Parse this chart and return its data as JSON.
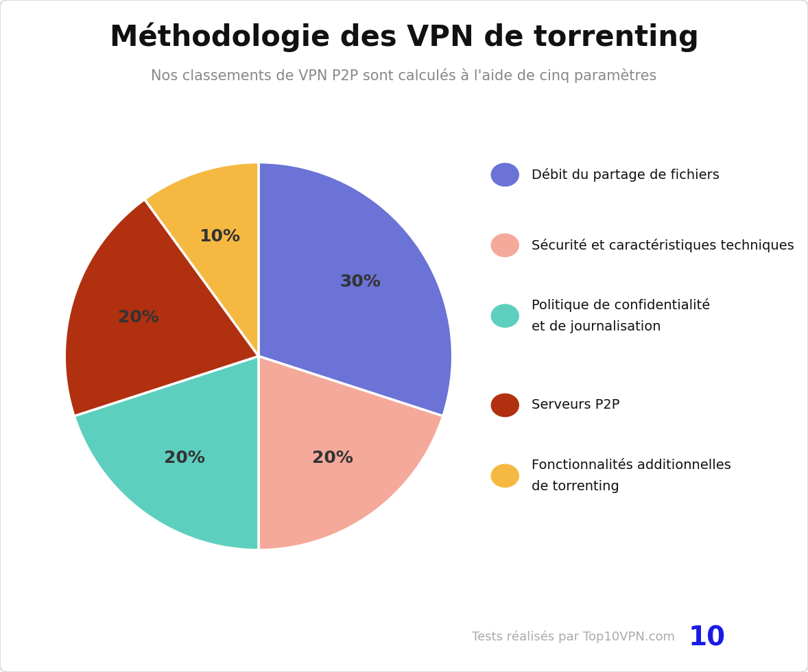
{
  "title": "Méthodologie des VPN de torrenting",
  "subtitle": "Nos classements de VPN P2P sont calculés à l'aide de cinq paramètres",
  "slices": [
    30,
    20,
    20,
    20,
    10
  ],
  "labels": [
    "30%",
    "20%",
    "20%",
    "20%",
    "10%"
  ],
  "colors": [
    "#6B73D6",
    "#F4A99A",
    "#5DCFBE",
    "#B03010",
    "#F5B942"
  ],
  "legend_labels": [
    "Débit du partage de fichiers",
    "Sécurité et caractéristiques techniques",
    "Politique de confidentialité\net de journalisation",
    "Serveurs P2P",
    "Fonctionnalités additionnelles\nde torrenting"
  ],
  "startangle": 90,
  "background_color": "#FFFFFF",
  "title_fontsize": 30,
  "subtitle_fontsize": 15,
  "label_fontsize": 18,
  "label_color": "#333333",
  "legend_fontsize": 14,
  "footer_text": "Tests réalisés par Top10VPN.com",
  "footer_color": "#AAAAAA",
  "logo_text": "10",
  "logo_color": "#1A1AE6"
}
